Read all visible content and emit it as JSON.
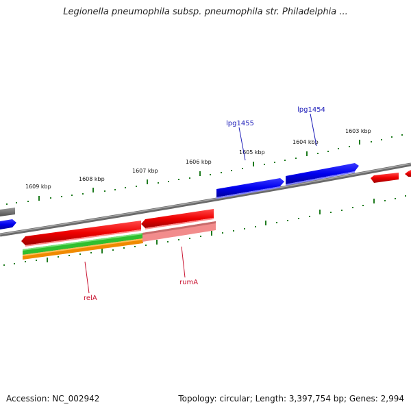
{
  "title": "Legionella pneumophila subsp. pneumophila str. Philadelphia ...",
  "footer": {
    "accession": "Accession: NC_002942",
    "summary": "Topology: circular; Length: 3,397,754 bp; Genes: 2,994"
  },
  "ruler_ticks": [
    "1609 kbp",
    "1608 kbp",
    "1607 kbp",
    "1606 kbp",
    "1605 kbp",
    "1604 kbp",
    "1603 kbp"
  ],
  "gene_labels": [
    "lpg1455",
    "lpg1454",
    "relA",
    "rumA"
  ],
  "colors": {
    "forward_gene": "#0000ee",
    "reverse_gene": "#ee0000",
    "backbone": "#808080",
    "tick": "#1e7b1e",
    "green_feature": "#2fbf2f",
    "orange_feature": "#f08a00",
    "pink_feature": "#f28c8c"
  }
}
